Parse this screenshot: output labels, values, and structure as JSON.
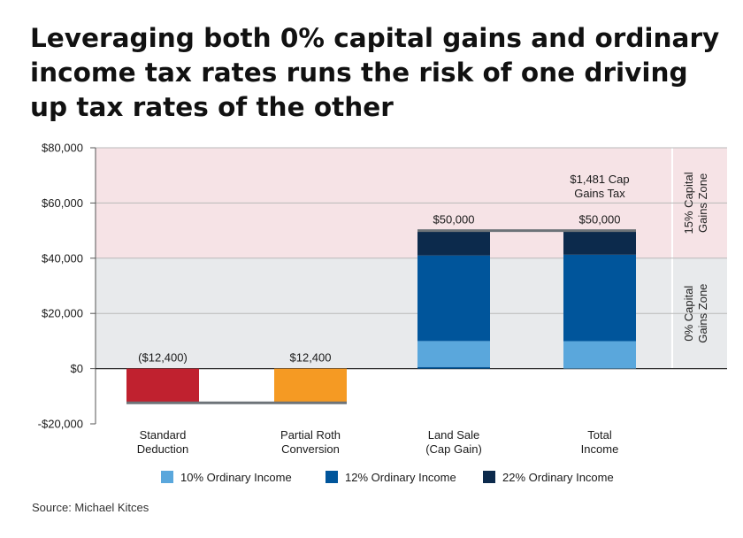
{
  "title": "Leveraging both 0% capital gains and ordinary income tax rates runs the risk of one driving up tax rates of the other",
  "source": "Source: Michael Kitces",
  "chart_data": {
    "type": "bar",
    "subtype": "waterfall-stacked",
    "y_range": [
      -20000,
      80000
    ],
    "y_ticks": [
      80000,
      60000,
      40000,
      20000,
      0,
      -20000
    ],
    "y_tick_labels": [
      "$80,000",
      "$60,000",
      "$40,000",
      "$20,000",
      "$0",
      "-$20,000"
    ],
    "zones": [
      {
        "label_lines": [
          "0% Capital",
          "Gains Zone"
        ],
        "from": 0,
        "to": 40000,
        "color": "#e8eaec"
      },
      {
        "label_lines": [
          "15% Capital",
          "Gains Zone"
        ],
        "from": 40000,
        "to": 80000,
        "color": "#f6e3e6"
      }
    ],
    "categories": [
      {
        "label_lines": [
          "Standard",
          "Deduction"
        ]
      },
      {
        "label_lines": [
          "Partial Roth",
          "Conversion"
        ]
      },
      {
        "label_lines": [
          "Land Sale",
          "(Cap Gain)"
        ]
      },
      {
        "label_lines": [
          "Total",
          "Income"
        ]
      }
    ],
    "bars": [
      {
        "segments": [
          {
            "from": 0,
            "to": -12400,
            "color": "#c0212f"
          }
        ],
        "label": "($12,400)"
      },
      {
        "segments": [
          {
            "from": -12400,
            "to": 0,
            "color": "#f59a23"
          }
        ],
        "label": "$12,400"
      },
      {
        "segments": [
          {
            "from": 0,
            "to": 600,
            "color": "#00559b"
          },
          {
            "from": 600,
            "to": 10000,
            "color": "#5aa7dc"
          },
          {
            "from": 10000,
            "to": 41000,
            "color": "#00559b"
          },
          {
            "from": 41000,
            "to": 50000,
            "color": "#0c2a4c"
          }
        ],
        "label": "$50,000"
      },
      {
        "segments": [
          {
            "from": 0,
            "to": 9950,
            "color": "#5aa7dc"
          },
          {
            "from": 9950,
            "to": 41275,
            "color": "#00559b"
          },
          {
            "from": 41275,
            "to": 50000,
            "color": "#0c2a4c"
          }
        ],
        "label": "$50,000"
      }
    ],
    "connectors": [
      {
        "from_bar": 0,
        "to_bar": 1,
        "value": -12400
      },
      {
        "from_bar": 2,
        "to_bar": 3,
        "value": 50000
      }
    ],
    "annotation": {
      "lines": [
        "$1,481 Cap",
        "Gains Tax"
      ],
      "bar": 3
    },
    "legend": [
      {
        "label": "10% Ordinary Income",
        "color": "#5aa7dc"
      },
      {
        "label": "12% Ordinary Income",
        "color": "#00559b"
      },
      {
        "label": "22% Ordinary Income",
        "color": "#0c2a4c"
      }
    ]
  }
}
